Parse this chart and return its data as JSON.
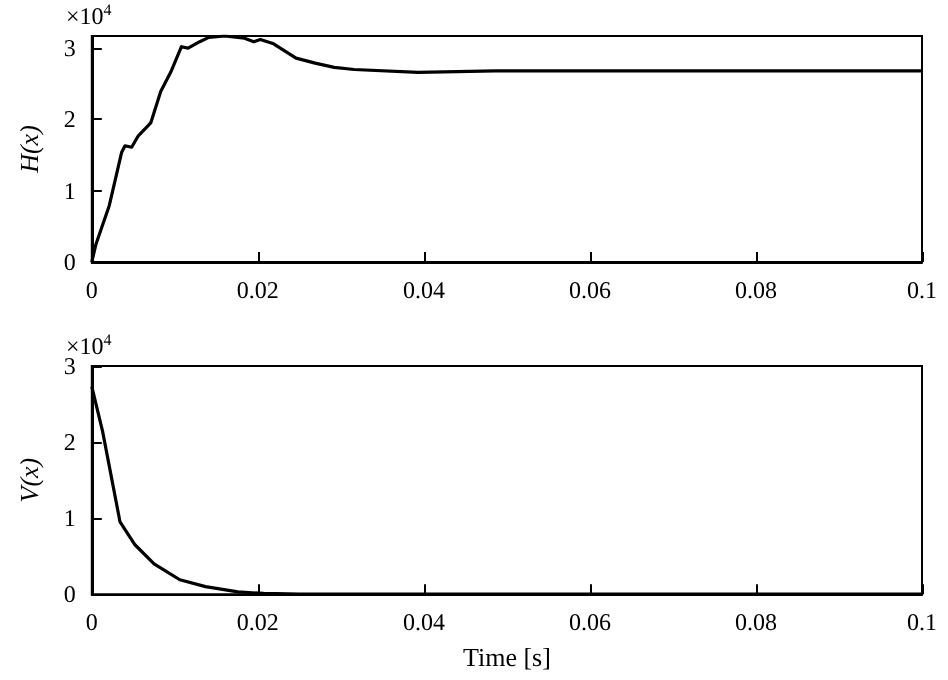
{
  "chart_data": [
    {
      "type": "line",
      "ylabel": "H(x)",
      "annotations": [
        "×10$^{4}$"
      ],
      "x": [
        0,
        0.0005,
        0.0021,
        0.0036,
        0.004,
        0.0048,
        0.0056,
        0.0071,
        0.0083,
        0.0095,
        0.0108,
        0.0116,
        0.013,
        0.0141,
        0.016,
        0.0184,
        0.0195,
        0.0203,
        0.0219,
        0.0246,
        0.0269,
        0.0292,
        0.0316,
        0.0393,
        0.0486,
        0.06,
        0.08,
        0.1
      ],
      "series": [
        {
          "color": "#000000",
          "values": [
            0,
            0.25,
            0.79,
            1.54,
            1.63,
            1.61,
            1.77,
            1.95,
            2.39,
            2.66,
            3.02,
            3.0,
            3.09,
            3.15,
            3.17,
            3.14,
            3.09,
            3.12,
            3.06,
            2.86,
            2.79,
            2.73,
            2.7,
            2.66,
            2.68,
            2.68,
            2.68,
            2.68
          ]
        }
      ],
      "xlim": [
        0,
        0.1
      ],
      "xticks": [
        0,
        0.02,
        0.04,
        0.06,
        0.08,
        0.1
      ],
      "ylim": [
        0,
        3.17
      ],
      "yticks": [
        0,
        1,
        2,
        3
      ],
      "grid": false,
      "marker": "none",
      "line_style": "solid"
    },
    {
      "type": "line",
      "ylabel": "V(x)",
      "xlabel": "Time [s]",
      "annotations": [
        "×10$^{4}$"
      ],
      "x": [
        0,
        0.0013,
        0.0034,
        0.0052,
        0.0075,
        0.0106,
        0.0137,
        0.0176,
        0.0207,
        0.025,
        0.04,
        0.06,
        0.08,
        0.1
      ],
      "series": [
        {
          "color": "#000000",
          "values": [
            2.73,
            2.14,
            0.95,
            0.65,
            0.4,
            0.19,
            0.1,
            0.03,
            0.01,
            0,
            0,
            0,
            0,
            0
          ]
        }
      ],
      "xlim": [
        0,
        0.1
      ],
      "xticks": [
        0,
        0.02,
        0.04,
        0.06,
        0.08,
        0.1
      ],
      "ylim": [
        0,
        3
      ],
      "yticks": [
        0,
        1,
        2,
        3
      ],
      "grid": false,
      "marker": "none",
      "line_style": "solid"
    }
  ]
}
